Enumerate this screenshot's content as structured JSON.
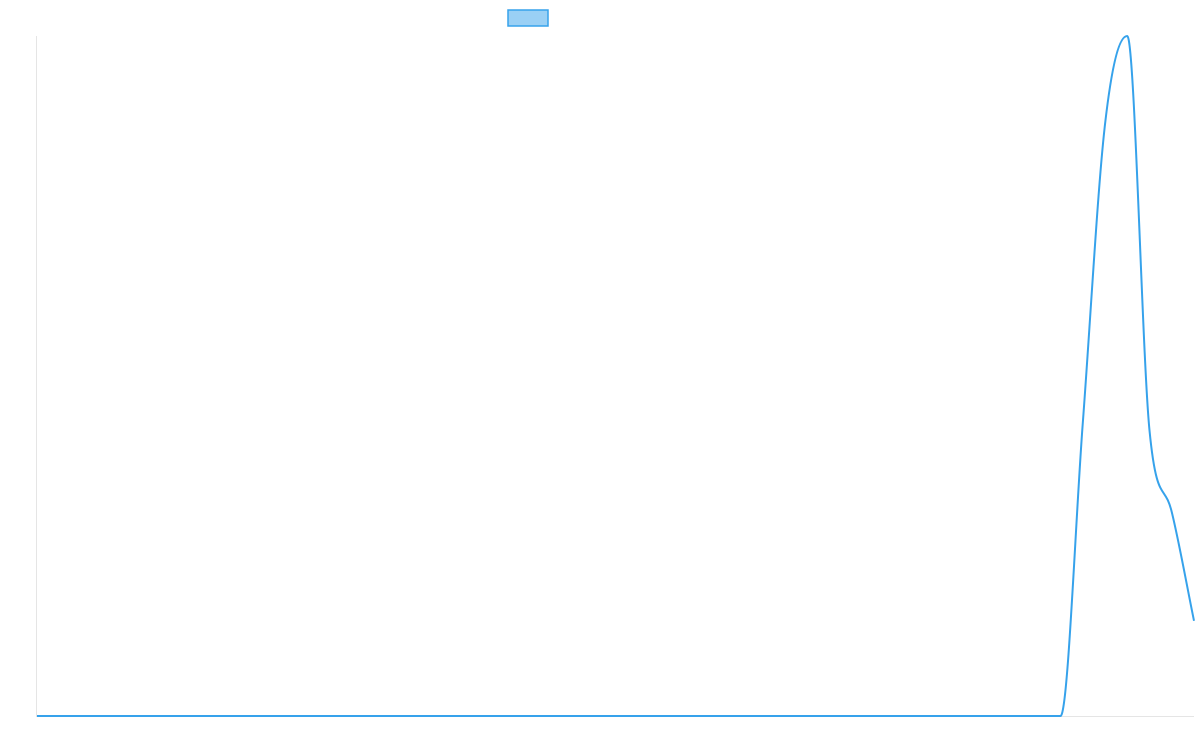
{
  "chart_data": {
    "type": "line",
    "title": "",
    "xlabel": "",
    "ylabel": "",
    "legend": {
      "placement": "top",
      "entries": [
        {
          "name": ""
        }
      ]
    },
    "grid": false,
    "ylim": [
      0,
      100
    ],
    "x": [
      0,
      1,
      2,
      3,
      4,
      5,
      6,
      7,
      8,
      9,
      10,
      11,
      12,
      13,
      14,
      15,
      16,
      17,
      18,
      19,
      20,
      21,
      22,
      23,
      24,
      25,
      26,
      27,
      28,
      29,
      30,
      31,
      32,
      33,
      34,
      35,
      36,
      37,
      38,
      39,
      40,
      41,
      42,
      43,
      44,
      45,
      46,
      47,
      48,
      49,
      50,
      51,
      52
    ],
    "series": [
      {
        "values": [
          0,
          0,
          0,
          0,
          0,
          0,
          0,
          0,
          0,
          0,
          0,
          0,
          0,
          0,
          0,
          0,
          0,
          0,
          0,
          0,
          0,
          0,
          0,
          0,
          0,
          0,
          0,
          0,
          0,
          0,
          0,
          0,
          0,
          0,
          0,
          0,
          0,
          0,
          0,
          0,
          0,
          0,
          0,
          0,
          0,
          0,
          0,
          43,
          87,
          100,
          42,
          30,
          14
        ],
        "color": "#36a2eb",
        "fill_color": "#9ad0f5"
      }
    ]
  }
}
